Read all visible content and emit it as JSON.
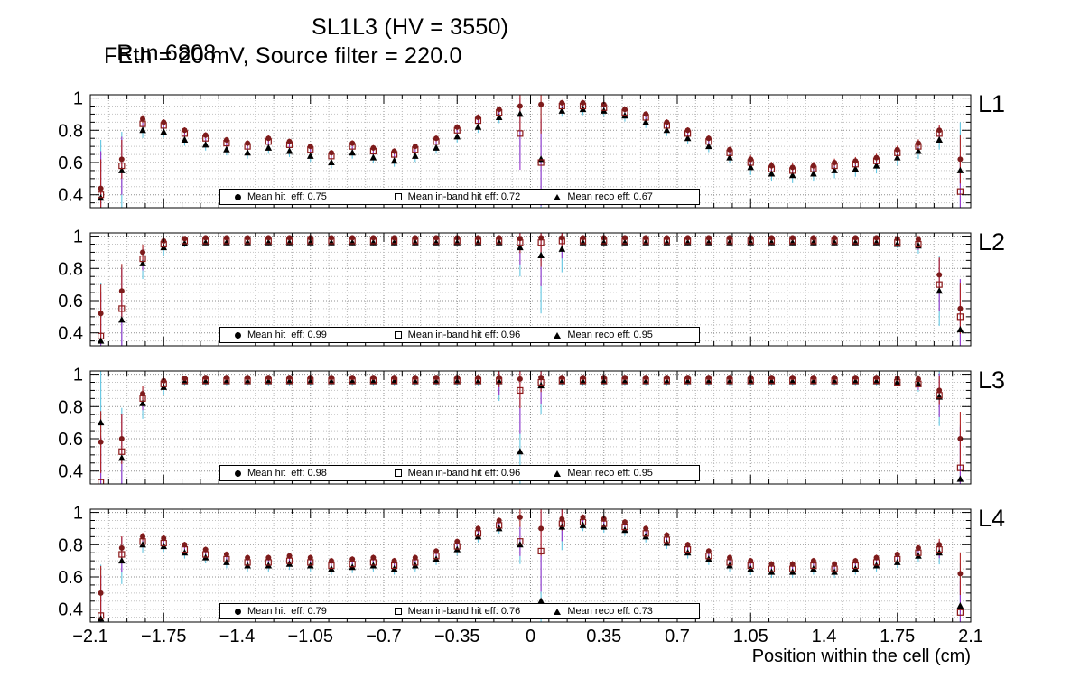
{
  "chart_data": {
    "type": "scatter",
    "title_left": "Run 6808",
    "title_right": "SL1L3 (HV = 3550)",
    "subtitle": "FEth = 20 mV, Source filter = 220.0",
    "xlabel": "Position within the cell (cm)",
    "xlim": [
      -2.1,
      2.1
    ],
    "ylim": [
      0.32,
      1.02
    ],
    "grid": true,
    "x_ticks": [
      -2.1,
      -1.75,
      -1.4,
      -1.05,
      -0.7,
      -0.35,
      0,
      0.35,
      0.7,
      1.05,
      1.4,
      1.75,
      2.1
    ],
    "x_tick_labels": [
      "−2.1",
      "−1.75",
      "−1.4",
      "−1.05",
      "−0.7",
      "−0.35",
      "0",
      "0.35",
      "0.7",
      "1.05",
      "1.4",
      "1.75",
      "2.1"
    ],
    "y_ticks": [
      0.4,
      0.6,
      0.8,
      1
    ],
    "y_tick_labels": [
      "0.4",
      "0.6",
      "0.8",
      "1"
    ],
    "colors": {
      "hit": "#7d1b1b",
      "hit_err": "#b22222",
      "inband": "#8b1a1a",
      "inband_err": "#9932cc",
      "reco": "#000000",
      "reco_err": "#62c6e2"
    },
    "err_scale": {
      "hit": 0.6,
      "inband": 0.9,
      "reco": 1.2
    },
    "x": [
      -2.05,
      -1.95,
      -1.85,
      -1.75,
      -1.65,
      -1.55,
      -1.45,
      -1.35,
      -1.25,
      -1.15,
      -1.05,
      -0.95,
      -0.85,
      -0.75,
      -0.65,
      -0.55,
      -0.45,
      -0.35,
      -0.25,
      -0.15,
      -0.05,
      0.05,
      0.15,
      0.25,
      0.35,
      0.45,
      0.55,
      0.65,
      0.75,
      0.85,
      0.95,
      1.05,
      1.15,
      1.25,
      1.35,
      1.45,
      1.55,
      1.65,
      1.75,
      1.85,
      1.95,
      2.05
    ],
    "panels": [
      {
        "label": "L1",
        "legend": {
          "hit": "Mean hit  eff: 0.75",
          "inband": "Mean in-band hit eff: 0.72",
          "reco": "Mean reco eff: 0.67"
        },
        "mean_hit_eff": 0.75,
        "mean_inband_eff": 0.72,
        "mean_reco_eff": 0.67,
        "hit": [
          0.44,
          0.62,
          0.87,
          0.85,
          0.8,
          0.77,
          0.74,
          0.72,
          0.75,
          0.73,
          0.7,
          0.66,
          0.72,
          0.69,
          0.67,
          0.7,
          0.75,
          0.82,
          0.88,
          0.93,
          0.95,
          0.96,
          0.97,
          0.97,
          0.96,
          0.93,
          0.9,
          0.85,
          0.8,
          0.75,
          0.68,
          0.62,
          0.58,
          0.57,
          0.58,
          0.6,
          0.61,
          0.63,
          0.68,
          0.72,
          0.8,
          0.62
        ],
        "inband": [
          0.4,
          0.58,
          0.84,
          0.83,
          0.78,
          0.75,
          0.72,
          0.7,
          0.73,
          0.71,
          0.68,
          0.64,
          0.7,
          0.67,
          0.65,
          0.68,
          0.73,
          0.8,
          0.86,
          0.91,
          0.78,
          0.6,
          0.95,
          0.95,
          0.94,
          0.91,
          0.88,
          0.83,
          0.78,
          0.73,
          0.66,
          0.6,
          0.56,
          0.55,
          0.56,
          0.58,
          0.59,
          0.61,
          0.66,
          0.7,
          0.78,
          0.42
        ],
        "reco": [
          0.38,
          0.55,
          0.8,
          0.79,
          0.74,
          0.71,
          0.68,
          0.66,
          0.69,
          0.67,
          0.64,
          0.6,
          0.66,
          0.63,
          0.61,
          0.64,
          0.69,
          0.76,
          0.82,
          0.88,
          0.9,
          0.62,
          0.92,
          0.93,
          0.92,
          0.89,
          0.85,
          0.8,
          0.75,
          0.7,
          0.63,
          0.57,
          0.53,
          0.52,
          0.53,
          0.55,
          0.56,
          0.58,
          0.63,
          0.67,
          0.74,
          0.55
        ],
        "err": [
          0.3,
          0.2,
          0.04,
          0.03,
          0.03,
          0.03,
          0.03,
          0.03,
          0.03,
          0.03,
          0.03,
          0.03,
          0.03,
          0.03,
          0.03,
          0.03,
          0.03,
          0.03,
          0.03,
          0.03,
          0.25,
          0.3,
          0.03,
          0.03,
          0.03,
          0.03,
          0.03,
          0.03,
          0.03,
          0.03,
          0.03,
          0.04,
          0.04,
          0.04,
          0.04,
          0.04,
          0.04,
          0.04,
          0.04,
          0.04,
          0.05,
          0.25
        ]
      },
      {
        "label": "L2",
        "legend": {
          "hit": "Mean hit  eff: 0.99",
          "inband": "Mean in-band hit eff: 0.96",
          "reco": "Mean reco eff: 0.95"
        },
        "mean_hit_eff": 0.99,
        "mean_inband_eff": 0.96,
        "mean_reco_eff": 0.95,
        "hit": [
          0.52,
          0.66,
          0.9,
          0.97,
          0.985,
          0.99,
          0.99,
          0.99,
          0.99,
          0.99,
          0.99,
          0.99,
          0.99,
          0.99,
          0.99,
          0.99,
          0.99,
          0.99,
          0.99,
          0.99,
          0.985,
          0.99,
          0.99,
          0.99,
          0.99,
          0.99,
          0.99,
          0.99,
          0.99,
          0.99,
          0.99,
          0.99,
          0.99,
          0.99,
          0.99,
          0.99,
          0.99,
          0.99,
          0.985,
          0.98,
          0.76,
          0.55
        ],
        "inband": [
          0.38,
          0.55,
          0.86,
          0.95,
          0.97,
          0.97,
          0.97,
          0.97,
          0.97,
          0.97,
          0.97,
          0.97,
          0.97,
          0.97,
          0.97,
          0.97,
          0.97,
          0.97,
          0.97,
          0.97,
          0.96,
          0.96,
          0.97,
          0.97,
          0.97,
          0.97,
          0.97,
          0.97,
          0.97,
          0.97,
          0.97,
          0.97,
          0.97,
          0.97,
          0.97,
          0.97,
          0.97,
          0.97,
          0.96,
          0.95,
          0.7,
          0.5
        ],
        "reco": [
          0.35,
          0.48,
          0.83,
          0.93,
          0.955,
          0.96,
          0.96,
          0.96,
          0.96,
          0.96,
          0.96,
          0.96,
          0.96,
          0.96,
          0.96,
          0.96,
          0.96,
          0.96,
          0.96,
          0.96,
          0.93,
          0.88,
          0.92,
          0.96,
          0.96,
          0.96,
          0.96,
          0.96,
          0.96,
          0.96,
          0.96,
          0.96,
          0.96,
          0.96,
          0.96,
          0.96,
          0.96,
          0.96,
          0.95,
          0.94,
          0.66,
          0.42
        ],
        "err": [
          0.3,
          0.28,
          0.08,
          0.04,
          0.02,
          0.02,
          0.02,
          0.02,
          0.02,
          0.02,
          0.02,
          0.02,
          0.02,
          0.02,
          0.02,
          0.02,
          0.02,
          0.02,
          0.02,
          0.02,
          0.15,
          0.3,
          0.12,
          0.02,
          0.02,
          0.02,
          0.02,
          0.02,
          0.02,
          0.02,
          0.02,
          0.02,
          0.02,
          0.02,
          0.02,
          0.02,
          0.02,
          0.02,
          0.02,
          0.04,
          0.18,
          0.26
        ]
      },
      {
        "label": "L3",
        "legend": {
          "hit": "Mean hit  eff: 0.98",
          "inband": "Mean in-band hit eff: 0.96",
          "reco": "Mean reco eff: 0.95"
        },
        "mean_hit_eff": 0.98,
        "mean_inband_eff": 0.96,
        "mean_reco_eff": 0.95,
        "hit": [
          0.58,
          0.6,
          0.88,
          0.96,
          0.975,
          0.98,
          0.98,
          0.98,
          0.98,
          0.98,
          0.98,
          0.98,
          0.98,
          0.98,
          0.98,
          0.98,
          0.98,
          0.98,
          0.98,
          0.98,
          0.97,
          0.98,
          0.98,
          0.98,
          0.98,
          0.98,
          0.98,
          0.98,
          0.98,
          0.98,
          0.98,
          0.98,
          0.98,
          0.98,
          0.98,
          0.98,
          0.98,
          0.98,
          0.975,
          0.97,
          0.9,
          0.6
        ],
        "inband": [
          0.33,
          0.52,
          0.85,
          0.94,
          0.96,
          0.96,
          0.96,
          0.96,
          0.96,
          0.96,
          0.96,
          0.96,
          0.96,
          0.96,
          0.96,
          0.96,
          0.96,
          0.96,
          0.96,
          0.96,
          0.9,
          0.95,
          0.96,
          0.96,
          0.96,
          0.96,
          0.96,
          0.96,
          0.96,
          0.96,
          0.96,
          0.96,
          0.96,
          0.96,
          0.96,
          0.96,
          0.96,
          0.96,
          0.95,
          0.94,
          0.87,
          0.42
        ],
        "reco": [
          0.7,
          0.48,
          0.82,
          0.92,
          0.955,
          0.955,
          0.955,
          0.955,
          0.955,
          0.955,
          0.955,
          0.955,
          0.955,
          0.955,
          0.955,
          0.955,
          0.955,
          0.955,
          0.955,
          0.955,
          0.52,
          0.93,
          0.955,
          0.955,
          0.955,
          0.955,
          0.955,
          0.955,
          0.955,
          0.955,
          0.955,
          0.955,
          0.955,
          0.955,
          0.955,
          0.955,
          0.955,
          0.955,
          0.95,
          0.94,
          0.86,
          0.35
        ],
        "err": [
          0.32,
          0.26,
          0.08,
          0.04,
          0.02,
          0.02,
          0.02,
          0.02,
          0.02,
          0.02,
          0.02,
          0.02,
          0.02,
          0.02,
          0.02,
          0.02,
          0.02,
          0.02,
          0.02,
          0.1,
          0.3,
          0.15,
          0.02,
          0.02,
          0.02,
          0.02,
          0.02,
          0.02,
          0.02,
          0.02,
          0.02,
          0.02,
          0.02,
          0.02,
          0.02,
          0.02,
          0.02,
          0.02,
          0.02,
          0.04,
          0.15,
          0.28
        ]
      },
      {
        "label": "L4",
        "legend": {
          "hit": "Mean hit  eff: 0.79",
          "inband": "Mean in-band hit eff: 0.76",
          "reco": "Mean reco eff: 0.73"
        },
        "mean_hit_eff": 0.79,
        "mean_inband_eff": 0.76,
        "mean_reco_eff": 0.73,
        "hit": [
          0.5,
          0.78,
          0.85,
          0.84,
          0.8,
          0.77,
          0.74,
          0.72,
          0.72,
          0.73,
          0.72,
          0.7,
          0.71,
          0.72,
          0.7,
          0.72,
          0.76,
          0.82,
          0.9,
          0.95,
          0.97,
          0.9,
          0.96,
          0.97,
          0.96,
          0.94,
          0.9,
          0.86,
          0.8,
          0.76,
          0.72,
          0.7,
          0.68,
          0.68,
          0.7,
          0.68,
          0.7,
          0.72,
          0.74,
          0.78,
          0.8,
          0.62
        ],
        "inband": [
          0.36,
          0.74,
          0.82,
          0.81,
          0.77,
          0.74,
          0.71,
          0.69,
          0.69,
          0.7,
          0.69,
          0.67,
          0.68,
          0.69,
          0.67,
          0.69,
          0.73,
          0.79,
          0.87,
          0.92,
          0.82,
          0.76,
          0.93,
          0.94,
          0.93,
          0.91,
          0.87,
          0.83,
          0.77,
          0.73,
          0.69,
          0.67,
          0.65,
          0.65,
          0.67,
          0.65,
          0.67,
          0.69,
          0.71,
          0.75,
          0.77,
          0.38
        ],
        "reco": [
          0.34,
          0.7,
          0.8,
          0.79,
          0.75,
          0.72,
          0.69,
          0.67,
          0.67,
          0.68,
          0.67,
          0.65,
          0.66,
          0.67,
          0.65,
          0.67,
          0.71,
          0.77,
          0.85,
          0.9,
          0.8,
          0.45,
          0.91,
          0.92,
          0.91,
          0.89,
          0.85,
          0.81,
          0.75,
          0.71,
          0.67,
          0.65,
          0.63,
          0.63,
          0.65,
          0.63,
          0.65,
          0.67,
          0.69,
          0.73,
          0.75,
          0.42
        ],
        "err": [
          0.28,
          0.12,
          0.04,
          0.03,
          0.03,
          0.03,
          0.03,
          0.03,
          0.03,
          0.03,
          0.03,
          0.03,
          0.03,
          0.03,
          0.03,
          0.03,
          0.03,
          0.03,
          0.03,
          0.03,
          0.1,
          0.28,
          0.12,
          0.03,
          0.03,
          0.03,
          0.03,
          0.03,
          0.03,
          0.03,
          0.03,
          0.03,
          0.03,
          0.03,
          0.03,
          0.03,
          0.03,
          0.03,
          0.03,
          0.03,
          0.06,
          0.22
        ]
      }
    ]
  }
}
